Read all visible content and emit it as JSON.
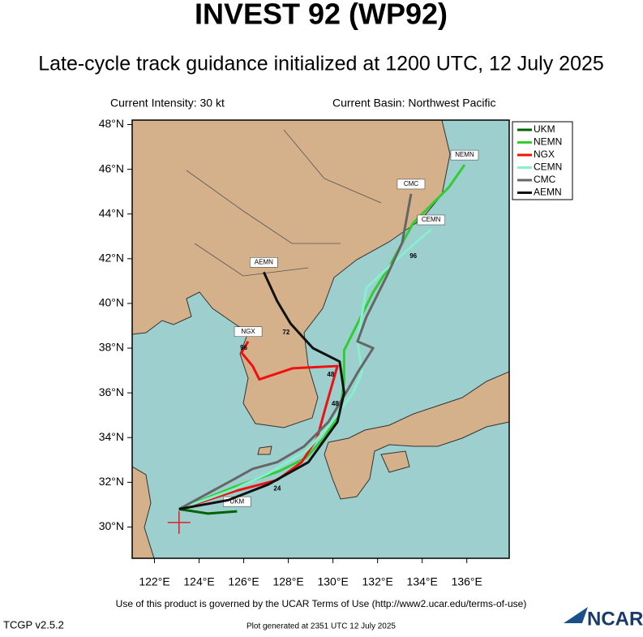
{
  "chart_data": {
    "type": "track-map",
    "title": "INVEST 92 (WP92)",
    "subtitle": "Late-cycle track guidance initialized at 1200 UTC, 12 July 2025",
    "intensity": "Current Intensity: 30 kt",
    "basin": "Current Basin: Northwest Pacific",
    "xlim": [
      121,
      137.9
    ],
    "ylim": [
      28.6,
      48.2
    ],
    "xticks": [
      {
        "value": 122,
        "label": "122°E"
      },
      {
        "value": 124,
        "label": "124°E"
      },
      {
        "value": 126,
        "label": "126°E"
      },
      {
        "value": 128,
        "label": "128°E"
      },
      {
        "value": 130,
        "label": "130°E"
      },
      {
        "value": 132,
        "label": "132°E"
      },
      {
        "value": 134,
        "label": "134°E"
      },
      {
        "value": 136,
        "label": "136°E"
      }
    ],
    "yticks": [
      {
        "value": 30,
        "label": "30°N"
      },
      {
        "value": 32,
        "label": "32°N"
      },
      {
        "value": 34,
        "label": "34°N"
      },
      {
        "value": 36,
        "label": "36°N"
      },
      {
        "value": 38,
        "label": "38°N"
      },
      {
        "value": 40,
        "label": "40°N"
      },
      {
        "value": 42,
        "label": "42°N"
      },
      {
        "value": 44,
        "label": "44°N"
      },
      {
        "value": 46,
        "label": "46°N"
      },
      {
        "value": 48,
        "label": "48°N"
      }
    ],
    "legend": "top-right",
    "current_position": {
      "x": 123.1,
      "y": 30.2,
      "color": "#e02020"
    },
    "series": [
      {
        "name": "UKM",
        "color": "#006400",
        "x": [
          123.1,
          124.4,
          125.7
        ],
        "y": [
          30.8,
          30.6,
          30.7
        ]
      },
      {
        "name": "NEMN",
        "color": "#33cc33",
        "x": [
          123.1,
          125.6,
          127.6,
          128.8,
          129.6,
          130.3,
          130.5,
          130.5,
          131.1,
          131.8,
          132.5,
          133.6,
          135.2,
          135.9
        ],
        "y": [
          30.8,
          31.8,
          32.5,
          33.1,
          34.0,
          35.1,
          36.5,
          37.9,
          39.1,
          40.5,
          41.6,
          43.6,
          45.2,
          46.2
        ]
      },
      {
        "name": "NGX",
        "color": "#ee1111",
        "x": [
          123.1,
          125.6,
          127.5,
          128.6,
          129.3,
          129.6,
          130.2,
          128.2,
          126.7,
          126.4,
          125.9,
          126.2
        ],
        "y": [
          30.8,
          31.6,
          32.1,
          32.9,
          34.0,
          35.1,
          37.2,
          37.1,
          36.6,
          37.2,
          37.8,
          38.3
        ]
      },
      {
        "name": "CEMN",
        "color": "#88eecc",
        "x": [
          123.1,
          125.6,
          127.1,
          128.8,
          129.8,
          130.9,
          131.3,
          131.1,
          131.5,
          132.9,
          133.8,
          134.4
        ],
        "y": [
          30.8,
          31.7,
          32.4,
          33.4,
          34.5,
          36.0,
          36.9,
          38.3,
          40.7,
          42.0,
          42.8,
          43.3
        ]
      },
      {
        "name": "CMC",
        "color": "#666666",
        "x": [
          123.1,
          125.5,
          126.4,
          127.5,
          128.7,
          129.8,
          130.7,
          131.1,
          131.8,
          131.1,
          131.5,
          132.4,
          133.1,
          133.5
        ],
        "y": [
          30.8,
          32.1,
          32.6,
          32.9,
          33.6,
          34.7,
          36.2,
          36.9,
          38.0,
          38.3,
          39.4,
          41.2,
          42.7,
          44.9
        ]
      },
      {
        "name": "AEMN",
        "color": "#111111",
        "x": [
          123.1,
          125.3,
          127.1,
          128.9,
          130.2,
          130.5,
          130.3,
          129.1,
          128.1,
          127.5,
          126.9
        ],
        "y": [
          30.8,
          31.2,
          31.9,
          32.9,
          34.7,
          36.0,
          37.4,
          38.0,
          39.1,
          40.1,
          41.4
        ]
      }
    ],
    "annotations": [
      {
        "text": "72",
        "x": 127.9,
        "y": 38.7
      },
      {
        "text": "48",
        "x": 129.9,
        "y": 36.8
      },
      {
        "text": "96",
        "x": 126.0,
        "y": 38.0
      },
      {
        "text": "24",
        "x": 127.5,
        "y": 31.7
      },
      {
        "text": "96",
        "x": 133.6,
        "y": 42.1
      },
      {
        "text": "48",
        "x": 130.1,
        "y": 35.5
      }
    ]
  },
  "footer": {
    "terms": "Use of this product is governed by the UCAR Terms of Use (http://www2.ucar.edu/terms-of-use)",
    "version": "TCGP v2.5.2",
    "generated": "Plot generated at 2351 UTC   12 July 2025",
    "logo": "NCAR"
  }
}
